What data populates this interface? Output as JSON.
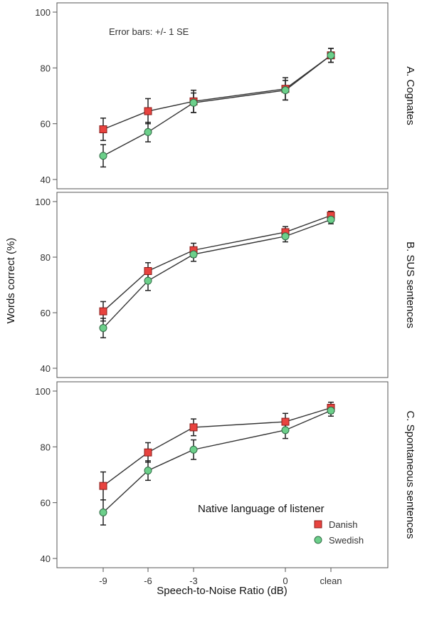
{
  "colors": {
    "danish": "#e8433f",
    "danish_stroke": "#8a1c1a",
    "swedish": "#6ccf8a",
    "swedish_stroke": "#2f6b44",
    "line": "#333333",
    "frame": "#555555"
  },
  "chart_data": {
    "type": "line",
    "x": [
      "-9",
      "-6",
      "-3",
      "0",
      "clean"
    ],
    "xlabel": "Speech-to-Noise Ratio (dB)",
    "ylabel": "Words correct (%)",
    "ylim": [
      40,
      100
    ],
    "yticks": [
      "40",
      "60",
      "80",
      "100"
    ],
    "annotation": "Error bars: +/- 1 SE",
    "legend": {
      "title": "Native language of listener",
      "placement": "bottom-right",
      "entries": [
        "Danish",
        "Swedish"
      ]
    },
    "panels": [
      {
        "title": "A. Cognates",
        "series": [
          {
            "name": "Danish",
            "values": [
              58,
              64.5,
              68,
              72.5,
              84.5
            ],
            "se": [
              4,
              4.5,
              4,
              4,
              2.5
            ]
          },
          {
            "name": "Swedish",
            "values": [
              48.5,
              57,
              67.5,
              72,
              84.5
            ],
            "se": [
              4,
              3.5,
              3.5,
              3.5,
              2.5
            ]
          }
        ]
      },
      {
        "title": "B. SUS sentences",
        "series": [
          {
            "name": "Danish",
            "values": [
              60.5,
              75,
              82.5,
              89,
              95
            ],
            "se": [
              3.5,
              3,
              2.5,
              2,
              1.5
            ]
          },
          {
            "name": "Swedish",
            "values": [
              54.5,
              71.5,
              81,
              87.5,
              93.5
            ],
            "se": [
              3.5,
              3.5,
              2.5,
              2,
              1.5
            ]
          }
        ]
      },
      {
        "title": "C. Spontaneous sentences",
        "series": [
          {
            "name": "Danish",
            "values": [
              66,
              78,
              87,
              89,
              94
            ],
            "se": [
              5,
              3.5,
              3,
              3,
              2
            ]
          },
          {
            "name": "Swedish",
            "values": [
              56.5,
              71.5,
              79,
              86,
              93
            ],
            "se": [
              4.5,
              3.5,
              3.5,
              3,
              2
            ]
          }
        ]
      }
    ]
  }
}
